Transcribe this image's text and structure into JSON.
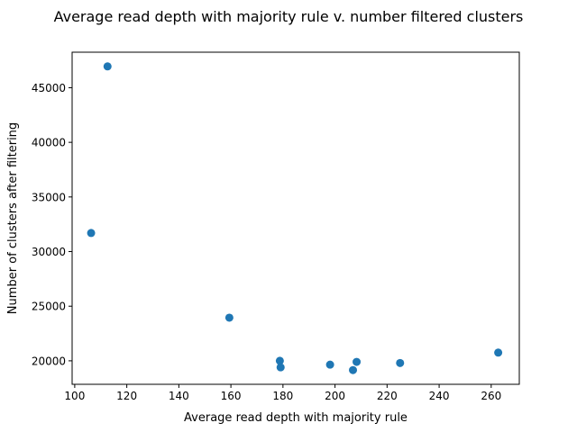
{
  "chart_data": {
    "type": "scatter",
    "title": "Average read depth with majority rule v. number filtered clusters",
    "xlabel": "Average read depth with majority rule",
    "ylabel": "Number of clusters after filtering",
    "xlim": [
      99.0,
      270.8
    ],
    "ylim": [
      17850,
      48250
    ],
    "xticks": [
      100,
      120,
      140,
      160,
      180,
      200,
      220,
      240,
      260
    ],
    "yticks": [
      20000,
      25000,
      30000,
      35000,
      40000,
      45000
    ],
    "grid": false,
    "marker_color": "#1f77b4",
    "points": [
      {
        "x": 106.3,
        "y": 31700
      },
      {
        "x": 112.6,
        "y": 46950
      },
      {
        "x": 159.4,
        "y": 23950
      },
      {
        "x": 178.8,
        "y": 20000
      },
      {
        "x": 179.1,
        "y": 19400
      },
      {
        "x": 198.1,
        "y": 19650
      },
      {
        "x": 206.9,
        "y": 19150
      },
      {
        "x": 208.3,
        "y": 19900
      },
      {
        "x": 225.0,
        "y": 19800
      },
      {
        "x": 262.7,
        "y": 20750
      }
    ]
  }
}
